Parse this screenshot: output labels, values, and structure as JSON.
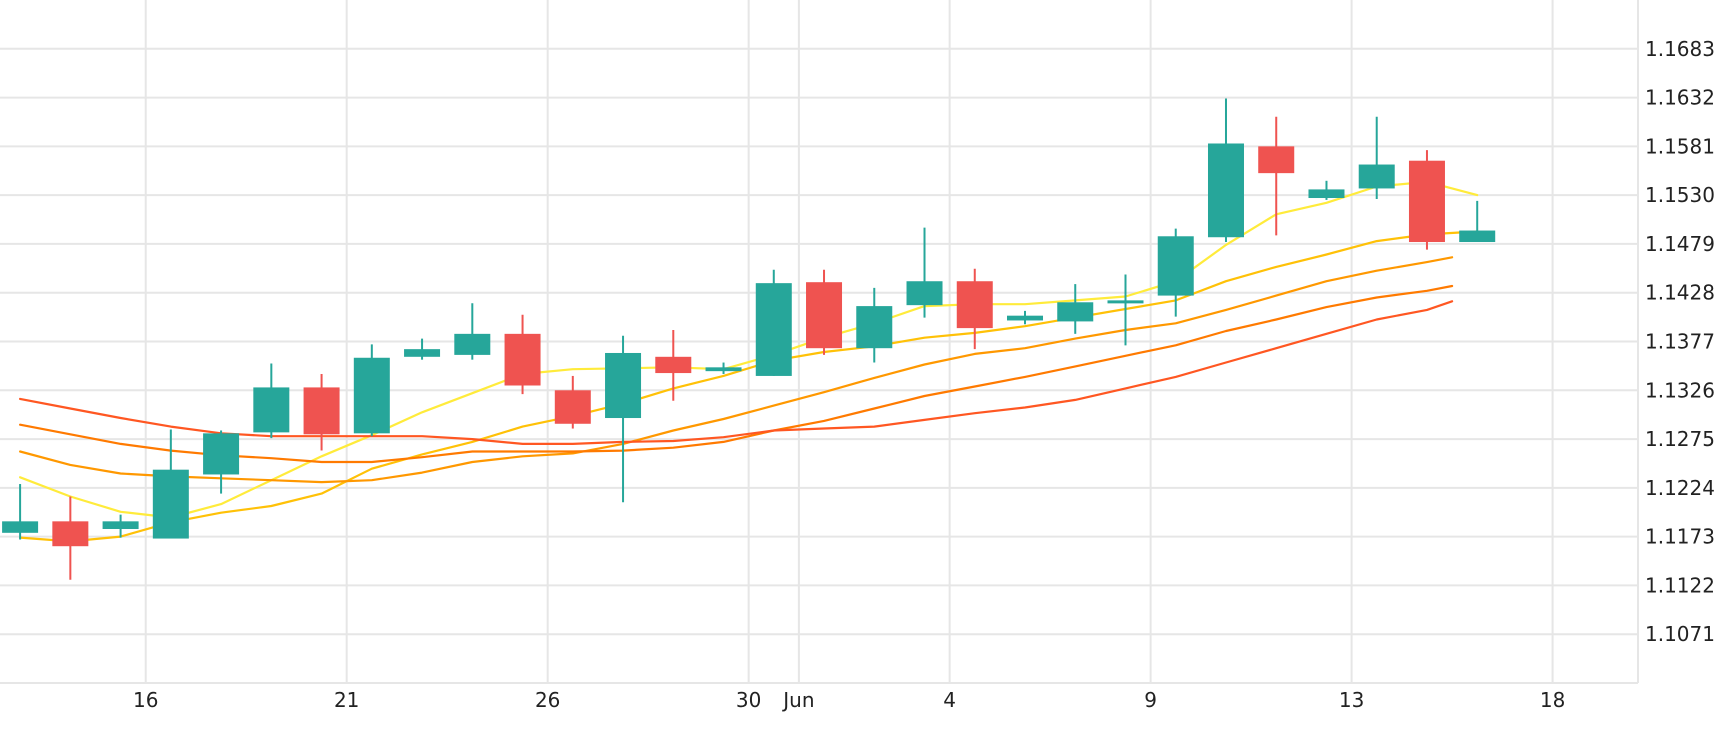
{
  "chart_data": {
    "type": "candlestick",
    "title": "",
    "xlabel": "",
    "ylabel": "",
    "grid": true,
    "ylim": [
      1.102,
      1.1734
    ],
    "y_ticks": [
      "1.1683",
      "1.1632",
      "1.1581",
      "1.1530",
      "1.1479",
      "1.1428",
      "1.1377",
      "1.1326",
      "1.1275",
      "1.1224",
      "1.1173",
      "1.1122",
      "1.1071"
    ],
    "x_ticks": [
      {
        "label": "16",
        "x": 2.5
      },
      {
        "label": "21",
        "x": 6.5
      },
      {
        "label": "26",
        "x": 10.5
      },
      {
        "label": "30",
        "x": 14.5
      },
      {
        "label": "Jun",
        "x": 15.5
      },
      {
        "label": "4",
        "x": 18.5
      },
      {
        "label": "9",
        "x": 22.5
      },
      {
        "label": "13",
        "x": 26.5
      },
      {
        "label": "18",
        "x": 30.5
      }
    ],
    "x_range": [
      -0.4,
      32.2
    ],
    "candles": [
      {
        "open": 1.1177,
        "high": 1.1228,
        "low": 1.117,
        "close": 1.1189
      },
      {
        "open": 1.1189,
        "high": 1.1215,
        "low": 1.1128,
        "close": 1.1163
      },
      {
        "open": 1.1181,
        "high": 1.1196,
        "low": 1.1172,
        "close": 1.1189
      },
      {
        "open": 1.1171,
        "high": 1.1285,
        "low": 1.1171,
        "close": 1.1243
      },
      {
        "open": 1.1238,
        "high": 1.1284,
        "low": 1.1218,
        "close": 1.1281
      },
      {
        "open": 1.1282,
        "high": 1.1354,
        "low": 1.1276,
        "close": 1.1329
      },
      {
        "open": 1.1329,
        "high": 1.1343,
        "low": 1.1263,
        "close": 1.128
      },
      {
        "open": 1.1281,
        "high": 1.1374,
        "low": 1.1278,
        "close": 1.136
      },
      {
        "open": 1.1361,
        "high": 1.138,
        "low": 1.1358,
        "close": 1.1369
      },
      {
        "open": 1.1363,
        "high": 1.1417,
        "low": 1.1358,
        "close": 1.1385
      },
      {
        "open": 1.1385,
        "high": 1.1405,
        "low": 1.1322,
        "close": 1.1331
      },
      {
        "open": 1.1326,
        "high": 1.1341,
        "low": 1.1286,
        "close": 1.1291
      },
      {
        "open": 1.1297,
        "high": 1.1383,
        "low": 1.1209,
        "close": 1.1365
      },
      {
        "open": 1.1361,
        "high": 1.1389,
        "low": 1.1315,
        "close": 1.1344
      },
      {
        "open": 1.1346,
        "high": 1.1355,
        "low": 1.1343,
        "close": 1.135
      },
      {
        "open": 1.1341,
        "high": 1.1452,
        "low": 1.1341,
        "close": 1.1438
      },
      {
        "open": 1.1439,
        "high": 1.1452,
        "low": 1.1363,
        "close": 1.137
      },
      {
        "open": 1.137,
        "high": 1.1433,
        "low": 1.1355,
        "close": 1.1414
      },
      {
        "open": 1.1415,
        "high": 1.1496,
        "low": 1.1402,
        "close": 1.144
      },
      {
        "open": 1.144,
        "high": 1.1453,
        "low": 1.1369,
        "close": 1.1391
      },
      {
        "open": 1.1399,
        "high": 1.1409,
        "low": 1.1395,
        "close": 1.1404
      },
      {
        "open": 1.1398,
        "high": 1.1437,
        "low": 1.1385,
        "close": 1.1418
      },
      {
        "open": 1.1418,
        "high": 1.1447,
        "low": 1.1373,
        "close": 1.142
      },
      {
        "open": 1.1425,
        "high": 1.1495,
        "low": 1.1403,
        "close": 1.1487
      },
      {
        "open": 1.1486,
        "high": 1.1631,
        "low": 1.1481,
        "close": 1.1584
      },
      {
        "open": 1.1581,
        "high": 1.1612,
        "low": 1.1488,
        "close": 1.1553
      },
      {
        "open": 1.1527,
        "high": 1.1545,
        "low": 1.1525,
        "close": 1.1536
      },
      {
        "open": 1.1537,
        "high": 1.1612,
        "low": 1.1526,
        "close": 1.1562
      },
      {
        "open": 1.1566,
        "high": 1.1577,
        "low": 1.1473,
        "close": 1.1481
      },
      {
        "open": 1.1481,
        "high": 1.1524,
        "low": 1.1481,
        "close": 1.1493
      }
    ],
    "series": [
      {
        "color": "#ffeb3b",
        "points": [
          [
            0,
            1.1235
          ],
          [
            1,
            1.1215
          ],
          [
            2,
            1.1199
          ],
          [
            3,
            1.1193
          ],
          [
            4,
            1.1207
          ],
          [
            5,
            1.1232
          ],
          [
            6,
            1.1257
          ],
          [
            7,
            1.1279
          ],
          [
            8,
            1.1303
          ],
          [
            9,
            1.1323
          ],
          [
            10,
            1.1343
          ],
          [
            11,
            1.1348
          ],
          [
            12,
            1.1349
          ],
          [
            13,
            1.135
          ],
          [
            14,
            1.1348
          ],
          [
            15,
            1.1363
          ],
          [
            16,
            1.1381
          ],
          [
            17,
            1.1396
          ],
          [
            18,
            1.1414
          ],
          [
            19,
            1.1416
          ],
          [
            20,
            1.1416
          ],
          [
            21,
            1.142
          ],
          [
            22,
            1.1424
          ],
          [
            23,
            1.144
          ],
          [
            24,
            1.1478
          ],
          [
            25,
            1.151
          ],
          [
            26,
            1.1522
          ],
          [
            27,
            1.1539
          ],
          [
            28,
            1.1544
          ],
          [
            29,
            1.153
          ]
        ]
      },
      {
        "color": "#ffc107",
        "points": [
          [
            0,
            1.1172
          ],
          [
            1,
            1.1168
          ],
          [
            2,
            1.1173
          ],
          [
            3,
            1.1188
          ],
          [
            4,
            1.1198
          ],
          [
            5,
            1.1205
          ],
          [
            6,
            1.1218
          ],
          [
            7,
            1.1244
          ],
          [
            8,
            1.1259
          ],
          [
            9,
            1.1272
          ],
          [
            10,
            1.1288
          ],
          [
            11,
            1.1299
          ],
          [
            12,
            1.1312
          ],
          [
            13,
            1.1328
          ],
          [
            14,
            1.1341
          ],
          [
            15,
            1.1357
          ],
          [
            16,
            1.1366
          ],
          [
            17,
            1.1372
          ],
          [
            18,
            1.1381
          ],
          [
            19,
            1.1386
          ],
          [
            20,
            1.1393
          ],
          [
            21,
            1.1402
          ],
          [
            22,
            1.1411
          ],
          [
            23,
            1.142
          ],
          [
            24,
            1.144
          ],
          [
            25,
            1.1455
          ],
          [
            26,
            1.1468
          ],
          [
            27,
            1.1482
          ],
          [
            28,
            1.1489
          ],
          [
            29,
            1.1492
          ]
        ]
      },
      {
        "color": "#ff9800",
        "points": [
          [
            0,
            1.1262
          ],
          [
            1,
            1.1248
          ],
          [
            2,
            1.1239
          ],
          [
            3,
            1.1236
          ],
          [
            4,
            1.1234
          ],
          [
            5,
            1.1232
          ],
          [
            6,
            1.123
          ],
          [
            7,
            1.1232
          ],
          [
            8,
            1.124
          ],
          [
            9,
            1.1251
          ],
          [
            10,
            1.1257
          ],
          [
            11,
            1.126
          ],
          [
            12,
            1.127
          ],
          [
            13,
            1.1284
          ],
          [
            14,
            1.1296
          ],
          [
            15,
            1.131
          ],
          [
            16,
            1.1324
          ],
          [
            17,
            1.1339
          ],
          [
            18,
            1.1353
          ],
          [
            19,
            1.1364
          ],
          [
            20,
            1.137
          ],
          [
            21,
            1.138
          ],
          [
            22,
            1.1389
          ],
          [
            23,
            1.1396
          ],
          [
            24,
            1.141
          ],
          [
            25,
            1.1425
          ],
          [
            26,
            1.144
          ],
          [
            27,
            1.1451
          ],
          [
            28,
            1.146
          ],
          [
            28.5,
            1.1465
          ]
        ]
      },
      {
        "color": "#ff7a00",
        "points": [
          [
            0,
            1.129
          ],
          [
            1,
            1.128
          ],
          [
            2,
            1.127
          ],
          [
            3,
            1.1263
          ],
          [
            4,
            1.1258
          ],
          [
            5,
            1.1255
          ],
          [
            6,
            1.1251
          ],
          [
            7,
            1.1251
          ],
          [
            8,
            1.1256
          ],
          [
            9,
            1.1262
          ],
          [
            10,
            1.1262
          ],
          [
            11,
            1.1262
          ],
          [
            12,
            1.1263
          ],
          [
            13,
            1.1266
          ],
          [
            14,
            1.1272
          ],
          [
            15,
            1.1284
          ],
          [
            16,
            1.1294
          ],
          [
            17,
            1.1307
          ],
          [
            18,
            1.132
          ],
          [
            19,
            1.133
          ],
          [
            20,
            1.134
          ],
          [
            21,
            1.1351
          ],
          [
            22,
            1.1362
          ],
          [
            23,
            1.1373
          ],
          [
            24,
            1.1388
          ],
          [
            25,
            1.14
          ],
          [
            26,
            1.1413
          ],
          [
            27,
            1.1423
          ],
          [
            28,
            1.143
          ],
          [
            28.5,
            1.1435
          ]
        ]
      },
      {
        "color": "#ff5722",
        "points": [
          [
            0,
            1.1317
          ],
          [
            1,
            1.1307
          ],
          [
            2,
            1.1297
          ],
          [
            3,
            1.1288
          ],
          [
            4,
            1.1281
          ],
          [
            5,
            1.1278
          ],
          [
            6,
            1.1278
          ],
          [
            7,
            1.1278
          ],
          [
            8,
            1.1278
          ],
          [
            9,
            1.1275
          ],
          [
            10,
            1.127
          ],
          [
            11,
            1.127
          ],
          [
            12,
            1.1272
          ],
          [
            13,
            1.1273
          ],
          [
            14,
            1.1277
          ],
          [
            15,
            1.1284
          ],
          [
            16,
            1.1286
          ],
          [
            17,
            1.1288
          ],
          [
            18,
            1.1295
          ],
          [
            19,
            1.1302
          ],
          [
            20,
            1.1308
          ],
          [
            21,
            1.1316
          ],
          [
            22,
            1.1328
          ],
          [
            23,
            1.134
          ],
          [
            24,
            1.1355
          ],
          [
            25,
            1.137
          ],
          [
            26,
            1.1385
          ],
          [
            27,
            1.14
          ],
          [
            28,
            1.141
          ],
          [
            28.5,
            1.1419
          ]
        ]
      }
    ],
    "colors": {
      "up": "#26a69a",
      "down": "#ef5350",
      "grid": "#e6e6e6",
      "axis_text": "#222222"
    }
  }
}
